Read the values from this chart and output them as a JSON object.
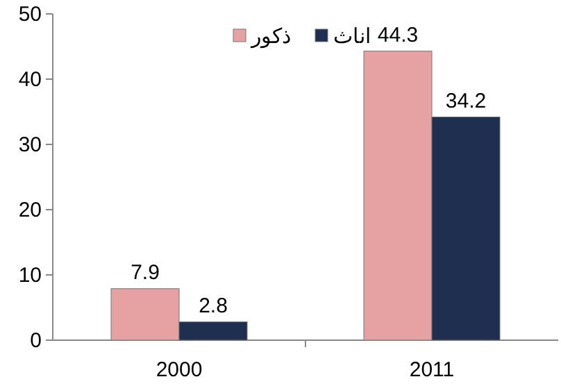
{
  "chart_data": {
    "type": "bar",
    "categories": [
      "2000",
      "2011"
    ],
    "series": [
      {
        "name": "ذكور",
        "color": "#e6a1a3",
        "values": [
          7.9,
          44.3
        ]
      },
      {
        "name": "اناث",
        "color": "#1f2f4f",
        "values": [
          2.8,
          34.2
        ]
      }
    ],
    "ylim": [
      0,
      50
    ],
    "yticks": [
      0,
      10,
      20,
      30,
      40,
      50
    ],
    "data_labels": true,
    "legend": "top"
  }
}
